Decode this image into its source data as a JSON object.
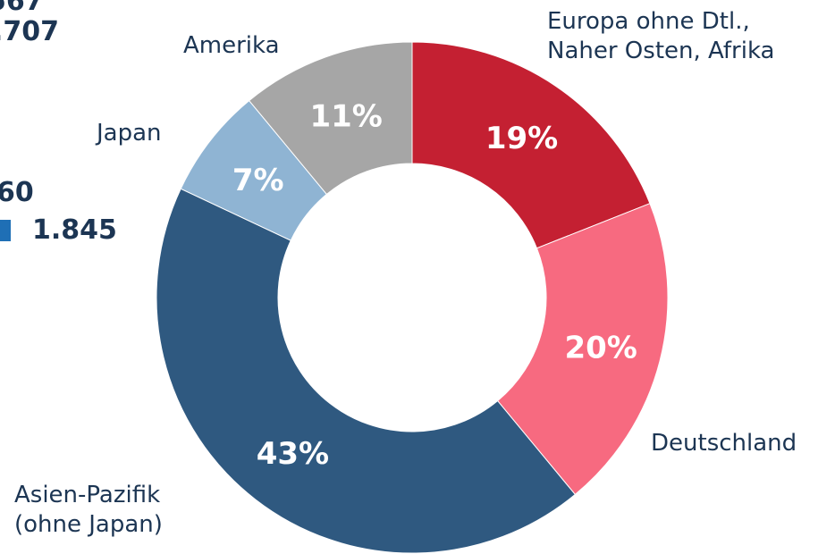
{
  "chart_data": {
    "type": "donut",
    "categories": [
      "Europa ohne Dtl.,\nNaher Osten, Afrika",
      "Deutschland",
      "Asien-Pazifik\n(ohne Japan)",
      "Japan",
      "Amerika"
    ],
    "values": [
      19,
      20,
      43,
      7,
      11
    ],
    "value_labels": [
      "19%",
      "20%",
      "43%",
      "7%",
      "11%"
    ],
    "colors": [
      "#c42032",
      "#f76a80",
      "#2f5980",
      "#8fb4d3",
      "#a6a6a6"
    ]
  },
  "side_fragments": [
    "567",
    ".707",
    "60",
    "1.845"
  ]
}
